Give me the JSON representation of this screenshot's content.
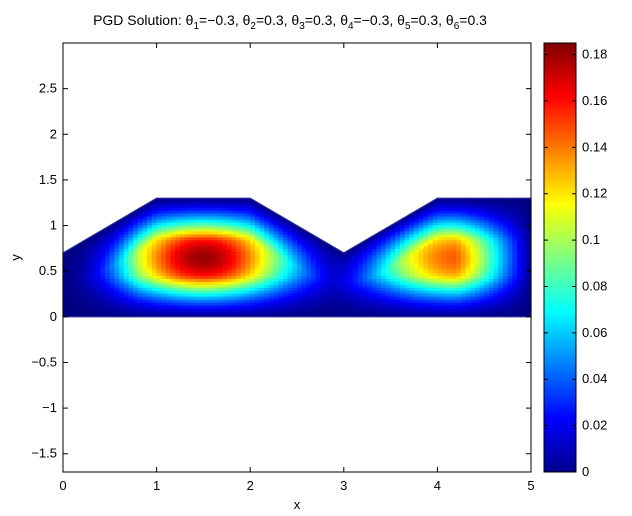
{
  "chart_data": {
    "type": "heatmap",
    "title": {
      "prefix": "PGD Solution: ",
      "params": [
        {
          "sym": "θ",
          "sub": "1",
          "val": "=−0.3"
        },
        {
          "sym": "θ",
          "sub": "2",
          "val": "=0.3"
        },
        {
          "sym": "θ",
          "sub": "3",
          "val": "=0.3"
        },
        {
          "sym": "θ",
          "sub": "4",
          "val": "=−0.3"
        },
        {
          "sym": "θ",
          "sub": "5",
          "val": "=0.3"
        },
        {
          "sym": "θ",
          "sub": "6",
          "val": "=0.3"
        }
      ],
      "separator": ", "
    },
    "xlabel": "x",
    "ylabel": "y",
    "xlim": [
      0,
      5
    ],
    "ylim": [
      -1.7,
      3.0
    ],
    "xticks": [
      0,
      1,
      2,
      3,
      4,
      5
    ],
    "xtick_labels": [
      "0",
      "1",
      "2",
      "3",
      "4",
      "5"
    ],
    "yticks": [
      -1.5,
      -1,
      -0.5,
      0,
      0.5,
      1,
      1.5,
      2,
      2.5
    ],
    "ytick_labels": [
      "−1.5",
      "−1",
      "−0.5",
      "0",
      "0.5",
      "1",
      "1.5",
      "2",
      "2.5"
    ],
    "domain_polygon": [
      [
        0,
        0
      ],
      [
        5,
        0
      ],
      [
        5,
        1.3
      ],
      [
        4,
        1.3
      ],
      [
        3,
        0.7
      ],
      [
        2,
        1.3
      ],
      [
        1,
        1.3
      ],
      [
        0,
        0.7
      ]
    ],
    "field_peaks": [
      {
        "x": 1.5,
        "y": 0.65,
        "value": 0.18
      },
      {
        "x": 4.2,
        "y": 0.65,
        "value": 0.145
      }
    ],
    "colorbar": {
      "range": [
        0,
        0.185
      ],
      "ticks": [
        0,
        0.02,
        0.04,
        0.06,
        0.08,
        0.1,
        0.12,
        0.14,
        0.16,
        0.18
      ],
      "tick_labels": [
        "0",
        "0.02",
        "0.04",
        "0.06",
        "0.08",
        "0.1",
        "0.12",
        "0.14",
        "0.16",
        "0.18"
      ],
      "colormap": "jet"
    },
    "grid": false,
    "legend": "none"
  }
}
